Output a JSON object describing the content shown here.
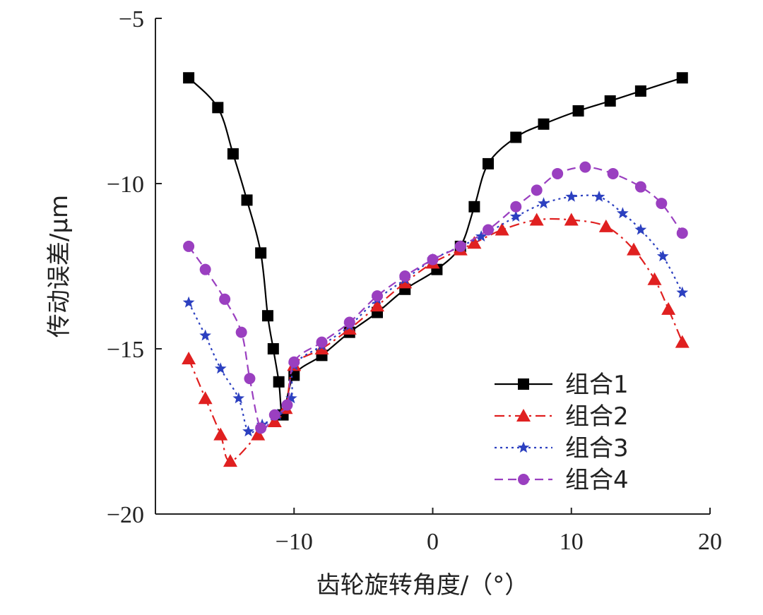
{
  "chart_data": {
    "type": "line",
    "title": "",
    "xlabel": "齿轮旋转角度/（°）",
    "ylabel": "传动误差/μm",
    "xlim": [
      -20,
      20
    ],
    "ylim": [
      -20,
      -5
    ],
    "xticks": [
      -10,
      0,
      10,
      20
    ],
    "yticks": [
      -5,
      -10,
      -15,
      -20
    ],
    "x_tick_labels": [
      "−10",
      "0",
      "10",
      "20"
    ],
    "y_tick_labels": [
      "−5",
      "−10",
      "−15",
      "−20"
    ],
    "grid": false,
    "legend_position": "bottom-right",
    "series": [
      {
        "name": "组合1",
        "color": "#000000",
        "marker": "square",
        "dash": "solid",
        "points": [
          [
            -17.6,
            -6.8
          ],
          [
            -15.5,
            -7.7
          ],
          [
            -14.4,
            -9.1
          ],
          [
            -13.4,
            -10.5
          ],
          [
            -12.4,
            -12.1
          ],
          [
            -11.9,
            -14.0
          ],
          [
            -11.5,
            -15.0
          ],
          [
            -11.1,
            -16.0
          ],
          [
            -10.8,
            -17.0
          ],
          [
            -10.0,
            -15.8
          ],
          [
            -8.0,
            -15.2
          ],
          [
            -6.0,
            -14.5
          ],
          [
            -4.0,
            -13.9
          ],
          [
            -2.0,
            -13.2
          ],
          [
            0.3,
            -12.6
          ],
          [
            2.0,
            -11.9
          ],
          [
            3.0,
            -10.7
          ],
          [
            4.0,
            -9.4
          ],
          [
            6.0,
            -8.6
          ],
          [
            8.0,
            -8.2
          ],
          [
            10.5,
            -7.8
          ],
          [
            12.8,
            -7.5
          ],
          [
            15.0,
            -7.2
          ],
          [
            18.0,
            -6.8
          ]
        ]
      },
      {
        "name": "组合2",
        "color": "#e02020",
        "marker": "triangle",
        "dash": "dashdot",
        "points": [
          [
            -17.6,
            -15.3
          ],
          [
            -16.4,
            -16.5
          ],
          [
            -15.3,
            -17.6
          ],
          [
            -14.6,
            -18.4
          ],
          [
            -12.6,
            -17.6
          ],
          [
            -11.4,
            -17.2
          ],
          [
            -10.6,
            -16.8
          ],
          [
            -10.0,
            -15.5
          ],
          [
            -8.0,
            -15.0
          ],
          [
            -6.0,
            -14.4
          ],
          [
            -4.0,
            -13.7
          ],
          [
            -2.0,
            -13.0
          ],
          [
            0.0,
            -12.4
          ],
          [
            2.0,
            -12.0
          ],
          [
            3.0,
            -11.8
          ],
          [
            5.0,
            -11.4
          ],
          [
            7.5,
            -11.1
          ],
          [
            10.0,
            -11.1
          ],
          [
            12.5,
            -11.3
          ],
          [
            14.5,
            -12.0
          ],
          [
            16.0,
            -12.9
          ],
          [
            17.0,
            -13.8
          ],
          [
            18.0,
            -14.8
          ]
        ]
      },
      {
        "name": "组合3",
        "color": "#2c40c0",
        "marker": "star",
        "dash": "dotted",
        "points": [
          [
            -17.6,
            -13.6
          ],
          [
            -16.4,
            -14.6
          ],
          [
            -15.3,
            -15.6
          ],
          [
            -14.0,
            -16.5
          ],
          [
            -13.3,
            -17.5
          ],
          [
            -12.3,
            -17.3
          ],
          [
            -11.2,
            -17.0
          ],
          [
            -10.2,
            -16.5
          ],
          [
            -10.0,
            -15.5
          ],
          [
            -8.0,
            -14.9
          ],
          [
            -6.0,
            -14.3
          ],
          [
            -4.0,
            -13.5
          ],
          [
            -2.0,
            -12.9
          ],
          [
            0.0,
            -12.3
          ],
          [
            2.0,
            -11.9
          ],
          [
            3.5,
            -11.6
          ],
          [
            6.0,
            -11.0
          ],
          [
            8.0,
            -10.6
          ],
          [
            10.0,
            -10.4
          ],
          [
            12.0,
            -10.4
          ],
          [
            13.7,
            -10.9
          ],
          [
            15.0,
            -11.4
          ],
          [
            16.6,
            -12.2
          ],
          [
            18.0,
            -13.3
          ]
        ]
      },
      {
        "name": "组合4",
        "color": "#9a3fc0",
        "marker": "circle",
        "dash": "dashed",
        "points": [
          [
            -17.6,
            -11.9
          ],
          [
            -16.4,
            -12.6
          ],
          [
            -15.0,
            -13.5
          ],
          [
            -13.8,
            -14.5
          ],
          [
            -13.2,
            -15.9
          ],
          [
            -12.4,
            -17.4
          ],
          [
            -11.4,
            -17.0
          ],
          [
            -10.5,
            -16.7
          ],
          [
            -10.0,
            -15.4
          ],
          [
            -8.0,
            -14.8
          ],
          [
            -6.0,
            -14.2
          ],
          [
            -4.0,
            -13.4
          ],
          [
            -2.0,
            -12.8
          ],
          [
            0.0,
            -12.3
          ],
          [
            2.0,
            -11.9
          ],
          [
            4.0,
            -11.4
          ],
          [
            6.0,
            -10.7
          ],
          [
            7.5,
            -10.2
          ],
          [
            9.0,
            -9.7
          ],
          [
            11.0,
            -9.5
          ],
          [
            13.0,
            -9.7
          ],
          [
            15.0,
            -10.1
          ],
          [
            16.5,
            -10.6
          ],
          [
            18.0,
            -11.5
          ]
        ]
      }
    ]
  }
}
